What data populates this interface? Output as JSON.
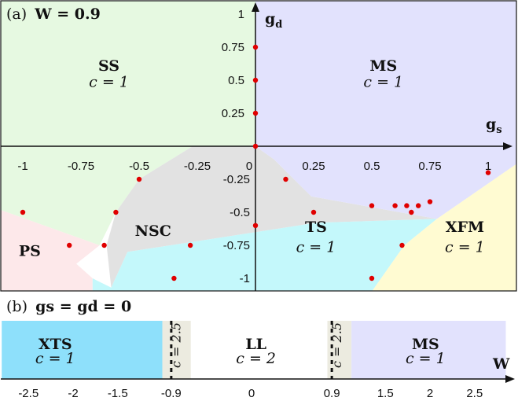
{
  "chart_data": [
    {
      "type": "phase-diagram",
      "panel_label": "(a)",
      "panel_title": "W = 0.9",
      "xlabel": "g",
      "xlabel_sub": "s",
      "ylabel": "g",
      "ylabel_sub": "d",
      "xlim": [
        -1.1,
        1.15
      ],
      "ylim": [
        -1.1,
        1.15
      ],
      "x_ticks": [
        -1,
        -0.75,
        -0.5,
        -0.25,
        0,
        0.25,
        0.5,
        0.75,
        1
      ],
      "x_tick_labels": [
        "-1",
        "-0.75",
        "-0.5",
        "-0.25",
        "0",
        "0.25",
        "0.5",
        "0.75",
        "1"
      ],
      "y_ticks_pos": [
        1,
        0.75,
        0.5,
        0.25
      ],
      "y_tick_labels_pos": [
        "1",
        "0.75",
        "0.5",
        "0.25"
      ],
      "y_ticks_neg": [
        -0.25,
        -0.5,
        -0.75,
        -1
      ],
      "y_tick_labels_neg": [
        "-0.25",
        "-0.5",
        "-0.75",
        "-1"
      ],
      "regions": [
        {
          "name": "SS",
          "c": "c = 1",
          "color": "#e6f9e1",
          "label_at": [
            -0.63,
            0.57
          ],
          "c_at": [
            -0.63,
            0.45
          ],
          "polygon": [
            [
              -1.1,
              1.15
            ],
            [
              0,
              1.15
            ],
            [
              0,
              0
            ],
            [
              -1.1,
              0
            ]
          ]
        },
        {
          "name": "MS",
          "c": "c = 1",
          "color": "#e2e2fd",
          "label_at": [
            0.55,
            0.57
          ],
          "c_at": [
            0.55,
            0.45
          ],
          "polygon": [
            [
              0,
              1.15
            ],
            [
              1.15,
              1.15
            ],
            [
              1.15,
              0
            ],
            [
              0,
              0
            ]
          ]
        },
        {
          "name": "SS-lower",
          "c": "",
          "color": "#e6f9e1",
          "polygon": [
            [
              -1.1,
              0
            ],
            [
              -0.27,
              0
            ],
            [
              -0.5,
              -0.25
            ],
            [
              -0.6,
              -0.5
            ],
            [
              -0.67,
              -0.75
            ],
            [
              -1.1,
              -0.48
            ]
          ]
        },
        {
          "name": "PS",
          "c": "",
          "color": "#fde8ea",
          "label_at": [
            -0.97,
            -0.83
          ],
          "polygon": [
            [
              -1.1,
              -0.48
            ],
            [
              -0.67,
              -0.75
            ],
            [
              -0.77,
              -0.89
            ],
            [
              -0.7,
              -1
            ],
            [
              -0.7,
              -1.1
            ],
            [
              -1.1,
              -1.1
            ]
          ]
        },
        {
          "name": "NSC",
          "c": "",
          "color": "#e2e2e2",
          "label_at": [
            -0.44,
            -0.68
          ],
          "polygon": [
            [
              -0.27,
              0
            ],
            [
              0,
              0
            ],
            [
              0.08,
              -0.1
            ],
            [
              0.24,
              -0.38
            ],
            [
              0.78,
              -0.55
            ],
            [
              0.26,
              -0.58
            ],
            [
              -0.55,
              -0.8
            ],
            [
              -0.62,
              -1.07
            ],
            [
              -0.64,
              -0.75
            ],
            [
              -0.6,
              -0.5
            ],
            [
              -0.5,
              -0.25
            ]
          ]
        },
        {
          "name": "MS-lower",
          "c": "",
          "color": "#e2e2fd",
          "polygon": [
            [
              0,
              0
            ],
            [
              1.15,
              0
            ],
            [
              1.15,
              -0.1
            ],
            [
              0.78,
              -0.55
            ],
            [
              0.24,
              -0.38
            ],
            [
              0.08,
              -0.1
            ]
          ]
        },
        {
          "name": "TS",
          "c": "c = 1",
          "color": "#c4f8fb",
          "label_at": [
            0.26,
            -0.65
          ],
          "c_at": [
            0.26,
            -0.8
          ],
          "polygon": [
            [
              -0.55,
              -0.8
            ],
            [
              0.26,
              -0.58
            ],
            [
              0.78,
              -0.55
            ],
            [
              0.64,
              -0.75
            ],
            [
              0.54,
              -1
            ],
            [
              0.5,
              -1.1
            ],
            [
              -0.7,
              -1.1
            ],
            [
              -0.7,
              -1
            ],
            [
              -0.62,
              -1.07
            ]
          ]
        },
        {
          "name": "XFM",
          "c": "c = 1",
          "color": "#fffbd2",
          "label_at": [
            0.9,
            -0.65
          ],
          "c_at": [
            0.9,
            -0.8
          ],
          "polygon": [
            [
              0.78,
              -0.55
            ],
            [
              1.15,
              -0.1
            ],
            [
              1.15,
              -1.1
            ],
            [
              0.5,
              -1.1
            ],
            [
              0.54,
              -1
            ],
            [
              0.64,
              -0.75
            ]
          ]
        }
      ],
      "data_points": [
        {
          "x": 0,
          "y": 0.75
        },
        {
          "x": 0,
          "y": 0.5
        },
        {
          "x": 0,
          "y": 0.25
        },
        {
          "x": 0,
          "y": 0
        },
        {
          "x": -1,
          "y": -0.5
        },
        {
          "x": -0.8,
          "y": -0.75
        },
        {
          "x": -0.65,
          "y": -0.75
        },
        {
          "x": -0.6,
          "y": -0.5
        },
        {
          "x": -0.5,
          "y": -0.25
        },
        {
          "x": -0.28,
          "y": -0.75
        },
        {
          "x": -0.35,
          "y": -1
        },
        {
          "x": 0,
          "y": -0.6
        },
        {
          "x": 0.13,
          "y": -0.25
        },
        {
          "x": 0.25,
          "y": -0.5
        },
        {
          "x": 0.5,
          "y": -0.45
        },
        {
          "x": 0.6,
          "y": -0.45
        },
        {
          "x": 0.65,
          "y": -0.45
        },
        {
          "x": 0.7,
          "y": -0.45
        },
        {
          "x": 0.75,
          "y": -0.42
        },
        {
          "x": 0.67,
          "y": -0.5
        },
        {
          "x": 0.63,
          "y": -0.75
        },
        {
          "x": 0.5,
          "y": -1
        },
        {
          "x": 1,
          "y": -0.2
        }
      ]
    },
    {
      "type": "phase-strip",
      "panel_label": "(b)",
      "panel_title": "gs = gd = 0",
      "xlabel": "W",
      "ticks": [
        -2.5,
        -2,
        -1.5,
        -0.9,
        0,
        0.9,
        1.5,
        2,
        2.5
      ],
      "tick_labels": [
        "-2.5",
        "-2",
        "-1.5",
        "-0.9",
        "0",
        "0.9",
        "1.5",
        "2",
        "2.5"
      ],
      "xlim": [
        -2.8,
        2.85
      ],
      "regions": [
        {
          "name": "XTS",
          "c": "c = 1",
          "from": -2.8,
          "to": -1.0,
          "color": "#8ee0fb",
          "label_at": -2.2
        },
        {
          "name": "c = 2.5",
          "c": "",
          "from": -1.0,
          "to": -0.68,
          "color": "#ecebe0",
          "label_at": -0.85,
          "vertical": true
        },
        {
          "name": "LL",
          "c": "c = 2",
          "from": -0.68,
          "to": 0.85,
          "color": "#ffffff",
          "label_at": 0.05
        },
        {
          "name": "c = 2.5",
          "c": "",
          "from": 0.85,
          "to": 1.12,
          "color": "#ecebe0",
          "label_at": 0.95,
          "vertical": true
        },
        {
          "name": "MS",
          "c": "c = 1",
          "from": 1.12,
          "to": 2.85,
          "color": "#e2e2fd",
          "label_at": 1.95
        }
      ],
      "dashed_lines": [
        -0.9,
        0.9
      ]
    }
  ]
}
